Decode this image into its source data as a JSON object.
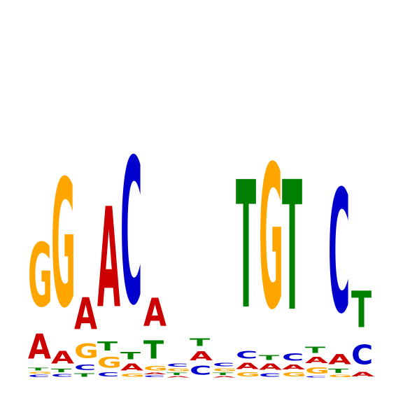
{
  "colors": {
    "A": "#cc0000",
    "C": "#0000cc",
    "G": "#ffa500",
    "T": "#008000"
  },
  "positions": [
    [
      [
        "C",
        0.05
      ],
      [
        "G",
        0.04
      ],
      [
        "T",
        0.06
      ],
      [
        "A",
        0.55
      ],
      [
        "G",
        1.4
      ]
    ],
    [
      [
        "C",
        0.06
      ],
      [
        "T",
        0.08
      ],
      [
        "A",
        0.28
      ],
      [
        "G",
        2.8
      ]
    ],
    [
      [
        "T",
        0.08
      ],
      [
        "C",
        0.12
      ],
      [
        "G",
        0.32
      ],
      [
        "A",
        0.7
      ]
    ],
    [
      [
        "C",
        0.09
      ],
      [
        "G",
        0.24
      ],
      [
        "T",
        0.2
      ],
      [
        "A",
        2.2
      ]
    ],
    [
      [
        "G",
        0.07
      ],
      [
        "A",
        0.15
      ],
      [
        "T",
        0.16
      ],
      [
        "C",
        3.2
      ]
    ],
    [
      [
        "C",
        0.04
      ],
      [
        "A",
        0.04
      ],
      [
        "G",
        0.1
      ],
      [
        "T",
        0.4
      ],
      [
        "A",
        0.62
      ]
    ],
    [
      [
        "A",
        0.03
      ],
      [
        "T",
        0.05
      ],
      [
        "G",
        0.06
      ],
      [
        "C",
        0.07
      ]
    ],
    [
      [
        "C",
        0.2
      ],
      [
        "A",
        0.2
      ],
      [
        "T",
        0.17
      ]
    ],
    [
      [
        "A",
        0.03
      ],
      [
        "T",
        0.05
      ],
      [
        "G",
        0.06
      ],
      [
        "C",
        0.08
      ]
    ],
    [
      [
        "G",
        0.09
      ],
      [
        "A",
        0.14
      ],
      [
        "C",
        0.17
      ],
      [
        "T",
        2.8
      ]
    ],
    [
      [
        "C",
        0.08
      ],
      [
        "A",
        0.14
      ],
      [
        "T",
        0.11
      ],
      [
        "G",
        3.15
      ]
    ],
    [
      [
        "G",
        0.09
      ],
      [
        "A",
        0.11
      ],
      [
        "C",
        0.16
      ],
      [
        "T",
        2.85
      ]
    ],
    [
      [
        "C",
        0.03
      ],
      [
        "G",
        0.14
      ],
      [
        "A",
        0.14
      ],
      [
        "T",
        0.14
      ]
    ],
    [
      [
        "G",
        0.05
      ],
      [
        "T",
        0.09
      ],
      [
        "A",
        0.22
      ],
      [
        "C",
        2.7
      ]
    ],
    [
      [
        "A",
        0.1
      ],
      [
        "C",
        0.43
      ],
      [
        "T",
        0.8
      ]
    ]
  ]
}
